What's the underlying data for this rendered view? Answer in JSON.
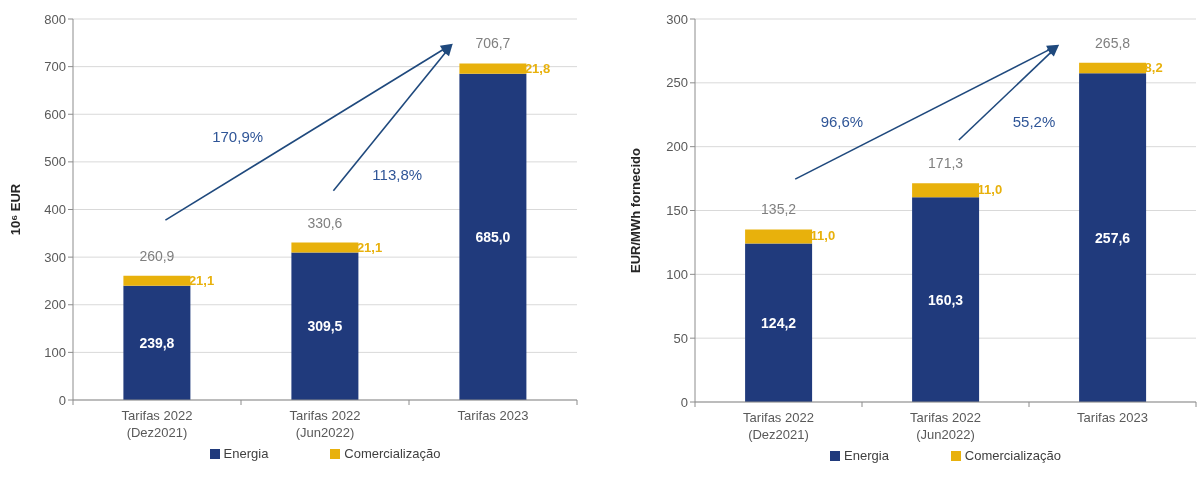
{
  "chart_data": [
    {
      "type": "bar",
      "stacked": true,
      "ylabel": "10⁶ EUR",
      "categories": [
        "Tarifas 2022\n(Dez2021)",
        "Tarifas 2022\n(Jun2022)",
        "Tarifas 2023"
      ],
      "series": [
        {
          "name": "Energia",
          "color": "#203a7c",
          "values": [
            239.8,
            309.5,
            685.0
          ],
          "value_labels": [
            "239,8",
            "309,5",
            "685,0"
          ]
        },
        {
          "name": "Comercialização",
          "color": "#e8b10c",
          "values": [
            21.1,
            21.1,
            21.8
          ],
          "value_labels": [
            "21,1",
            "21,1",
            "21,8"
          ]
        }
      ],
      "totals": [
        "260,9",
        "330,6",
        "706,7"
      ],
      "ylim": [
        0,
        800
      ],
      "yticks": [
        0,
        100,
        200,
        300,
        400,
        500,
        600,
        700,
        800
      ],
      "grid": "y",
      "legend": "bottom",
      "annotations": [
        "170,9%",
        "113,8%"
      ]
    },
    {
      "type": "bar",
      "stacked": true,
      "ylabel": "EUR/MWh fornecido",
      "categories": [
        "Tarifas 2022\n(Dez2021)",
        "Tarifas 2022\n(Jun2022)",
        "Tarifas 2023"
      ],
      "series": [
        {
          "name": "Energia",
          "color": "#203a7c",
          "values": [
            124.2,
            160.3,
            257.6
          ],
          "value_labels": [
            "124,2",
            "160,3",
            "257,6"
          ]
        },
        {
          "name": "Comercialização",
          "color": "#e8b10c",
          "values": [
            11.0,
            11.0,
            8.2
          ],
          "value_labels": [
            "11,0",
            "11,0",
            "8,2"
          ]
        }
      ],
      "totals": [
        "135,2",
        "171,3",
        "265,8"
      ],
      "ylim": [
        0,
        300
      ],
      "yticks": [
        0,
        50,
        100,
        150,
        200,
        250,
        300
      ],
      "grid": "y",
      "legend": "bottom",
      "annotations": [
        "96,6%",
        "55,2%"
      ]
    }
  ]
}
